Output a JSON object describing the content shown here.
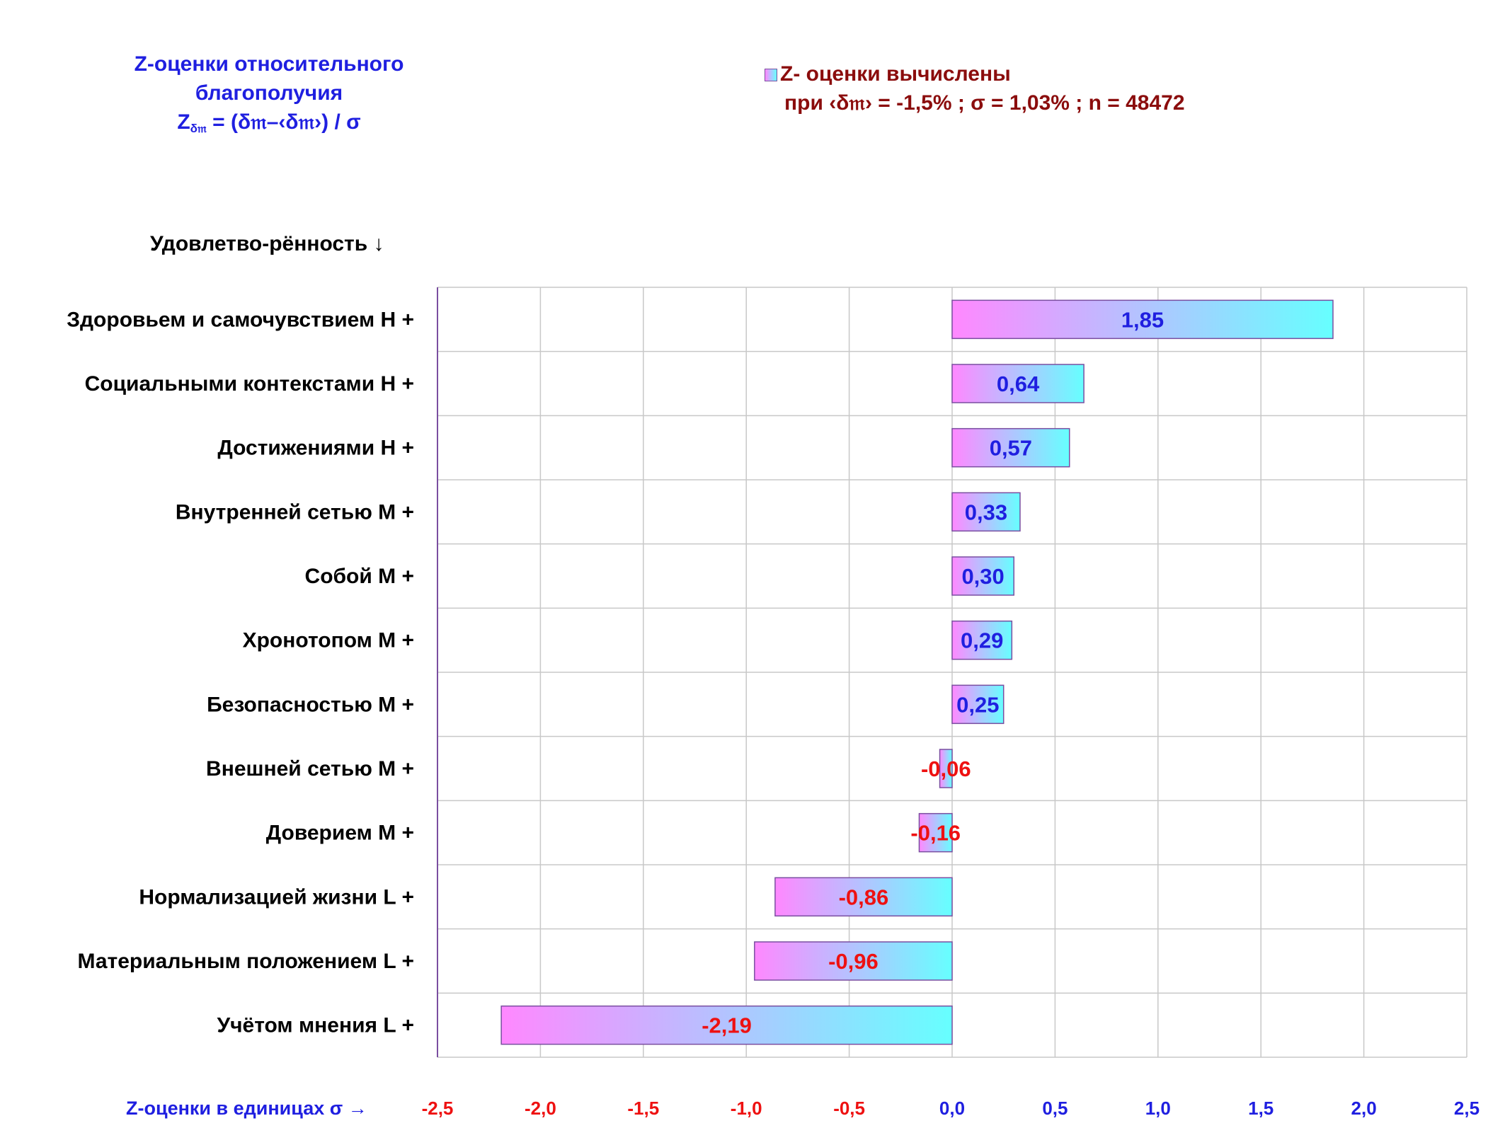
{
  "title": {
    "line1": "Z-оценки  относительного",
    "line2": "благополучия",
    "formula_z": "Z",
    "formula_sub": "δ𝔪",
    "formula_rest": " = (δ𝔪–‹δ𝔪›)  / σ"
  },
  "legend": {
    "line1": "Z- оценки вычислены",
    "line2": "при ‹δ𝔪› = -1,5% ; σ = 1,03% ; n = 48472"
  },
  "colors": {
    "title": "#1f1fe0",
    "legend_text": "#8b0d0d",
    "positive_label": "#1f1fe0",
    "negative_label": "#ee1111",
    "bar_gradient_start": "#ff88ff",
    "bar_gradient_end": "#66ffff",
    "bar_border": "#7a4ea0",
    "gridline": "#c8c8c8",
    "category_axis": "#7a4ea0"
  },
  "chart_data": {
    "type": "bar",
    "orientation": "horizontal",
    "category_axis_title": "Удовлетво-рённость ↓",
    "value_axis_title": "Z-оценки в единицах σ →",
    "xlim": [
      -2.5,
      2.5
    ],
    "x_ticks": [
      -2.5,
      -2.0,
      -1.5,
      -1.0,
      -0.5,
      0.0,
      0.5,
      1.0,
      1.5,
      2.0,
      2.5
    ],
    "x_tick_labels": [
      "-2,5",
      "-2,0",
      "-1,5",
      "-1,0",
      "-0,5",
      "0,0",
      "0,5",
      "1,0",
      "1,5",
      "2,0",
      "2,5"
    ],
    "grid": true,
    "categories": [
      "Здоровьем и самочувствием  H +",
      "Социальными контекстами  H +",
      "Достижениями  H +",
      "Внутренней сетью  M +",
      "Собой  M +",
      "Хронотопом  M +",
      "Безопасностью  M +",
      "Внешней сетью  M +",
      "Доверием  M +",
      "Нормализацией жизни  L +",
      "Материальным положением  L +",
      "Учётом мнения  L +"
    ],
    "values": [
      1.85,
      0.64,
      0.57,
      0.33,
      0.3,
      0.29,
      0.25,
      -0.06,
      -0.16,
      -0.86,
      -0.96,
      -2.19
    ],
    "value_labels": [
      "1,85",
      "0,64",
      "0,57",
      "0,33",
      "0,30",
      "0,29",
      "0,25",
      "-0,06",
      "-0,16",
      "-0,86",
      "-0,96",
      "-2,19"
    ]
  }
}
